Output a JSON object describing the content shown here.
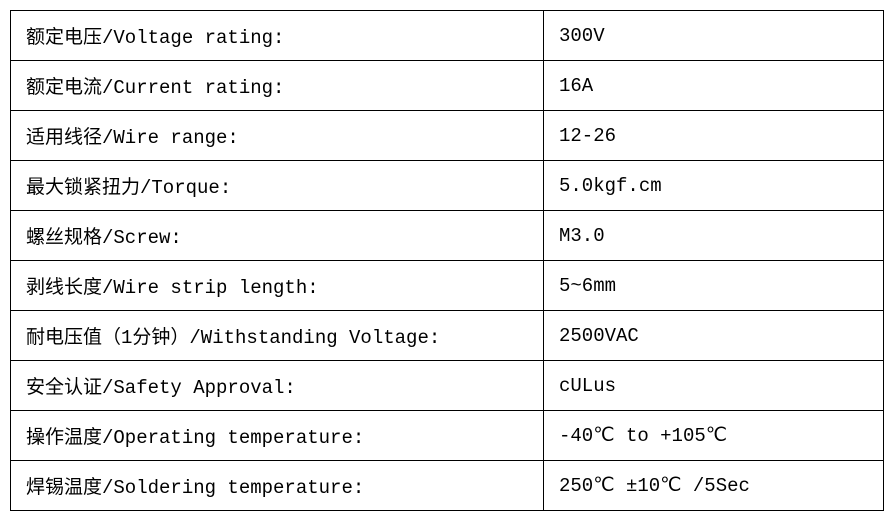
{
  "rows": [
    {
      "label": "额定电压/Voltage rating:",
      "value": "300V"
    },
    {
      "label": "额定电流/Current rating:",
      "value": "16A"
    },
    {
      "label": "适用线径/Wire range:",
      "value": "12-26"
    },
    {
      "label": "最大锁紧扭力/Torque:",
      "value": "5.0kgf.cm"
    },
    {
      "label": "螺丝规格/Screw:",
      "value": "M3.0"
    },
    {
      "label": "剥线长度/Wire strip length:",
      "value": "5~6mm"
    },
    {
      "label": "耐电压值（1分钟）/Withstanding Voltage:",
      "value": "2500VAC"
    },
    {
      "label": "安全认证/Safety Approval:",
      "value": "cULus"
    },
    {
      "label": "操作温度/Operating temperature:",
      "value": "-40℃ to +105℃"
    },
    {
      "label": "焊锡温度/Soldering temperature:",
      "value": "250℃ ±10℃ /5Sec"
    }
  ]
}
